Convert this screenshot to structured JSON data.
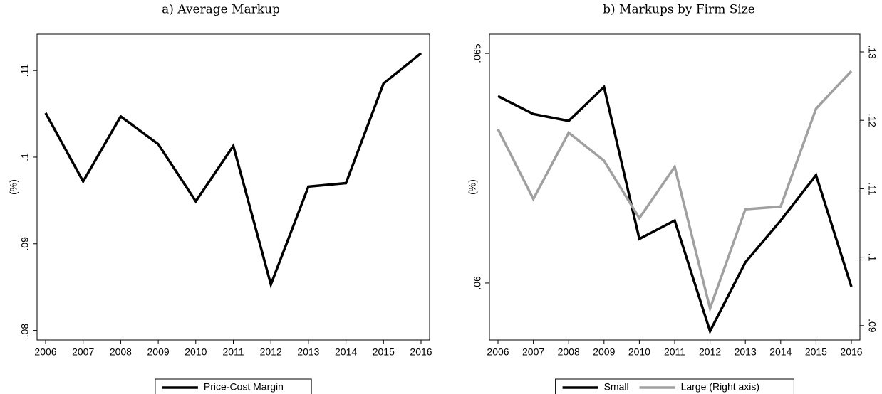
{
  "chart_data": [
    {
      "type": "line",
      "title": "a) Average Markup",
      "y_label": "(%)",
      "categories": [
        "2006",
        "2007",
        "2008",
        "2009",
        "2010",
        "2011",
        "2012",
        "2013",
        "2014",
        "2015",
        "2016"
      ],
      "series": [
        {
          "name": "Price-Cost Margin",
          "color": "#000000",
          "values": [
            0.1051,
            0.0972,
            0.1047,
            0.1015,
            0.0949,
            0.1013,
            0.0853,
            0.0966,
            0.097,
            0.1085,
            0.112
          ]
        }
      ],
      "ylim": [
        0.0789,
        0.1142
      ],
      "yticks": [
        {
          "value": 0.08,
          "label": ".08"
        },
        {
          "value": 0.09,
          "label": ".09"
        },
        {
          "value": 0.1,
          "label": ".1"
        },
        {
          "value": 0.11,
          "label": ".11"
        }
      ],
      "legend": "bottom"
    },
    {
      "type": "line",
      "title": "b) Markups by Firm Size",
      "y_label": "(%)",
      "categories": [
        "2006",
        "2007",
        "2008",
        "2009",
        "2010",
        "2011",
        "2012",
        "2013",
        "2014",
        "2015",
        "2016"
      ],
      "series": [
        {
          "name": "Small",
          "color": "#000000",
          "values": [
            0.06407,
            0.06368,
            0.06353,
            0.06427,
            0.06096,
            0.06136,
            0.05895,
            0.06045,
            0.06136,
            0.06235,
            0.05992
          ]
        },
        {
          "name": "Large (Right axis)",
          "color": "#a0a0a0",
          "axis": "y2",
          "values": [
            0.1187,
            0.1085,
            0.1182,
            0.1141,
            0.1057,
            0.1132,
            0.0925,
            0.107,
            0.1074,
            0.1217,
            0.1272
          ]
        }
      ],
      "ylim": [
        0.05876,
        0.06542
      ],
      "yticks": [
        {
          "value": 0.06,
          "label": ".06"
        },
        {
          "value": 0.065,
          "label": ".065"
        }
      ],
      "y2lim": [
        0.0879,
        0.1326
      ],
      "y2ticks": [
        {
          "value": 0.09,
          "label": ".09"
        },
        {
          "value": 0.1,
          "label": ".1"
        },
        {
          "value": 0.11,
          "label": ".11"
        },
        {
          "value": 0.12,
          "label": ".12"
        },
        {
          "value": 0.13,
          "label": ".13"
        }
      ],
      "legend": "bottom"
    }
  ]
}
